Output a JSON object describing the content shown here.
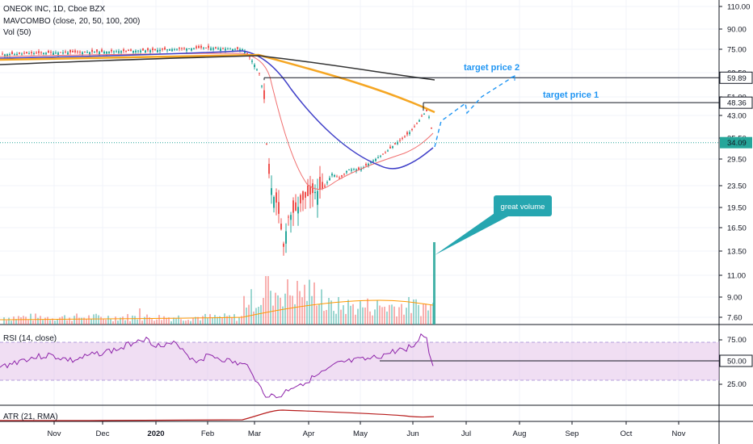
{
  "header": {
    "title": "ONEOK INC, 1D, Cboe BZX",
    "indicator_ma": "MAVCOMBO (close, 20, 50, 100, 200)",
    "indicator_vol": "Vol (50)"
  },
  "panes": {
    "rsi_label": "RSI (14, close)",
    "atr_label": "ATR (21, RMA)"
  },
  "annotations": {
    "target_price_1": "target price 1",
    "target_price_2": "target price 2",
    "great_volume": "great volume"
  },
  "price_axis": {
    "ticks": [
      "110.00",
      "90.00",
      "75.00",
      "62.50",
      "51.00",
      "43.00",
      "35.50",
      "29.50",
      "23.50",
      "19.50",
      "16.50",
      "13.50",
      "11.00",
      "9.00",
      "7.60"
    ],
    "badges": [
      {
        "value": "59.89",
        "style": "outline"
      },
      {
        "value": "48.36",
        "style": "outline"
      },
      {
        "value": "34.09",
        "style": "filled"
      }
    ]
  },
  "rsi_axis": {
    "ticks": [
      "75.00",
      "25.00"
    ],
    "badge": "50.00"
  },
  "time_axis": {
    "labels": [
      "Nov",
      "Dec",
      "2020",
      "Feb",
      "Mar",
      "Apr",
      "May",
      "Jun",
      "Jul",
      "Aug",
      "Sep",
      "Oct",
      "Nov"
    ]
  },
  "colors": {
    "up": "#26a69a",
    "down": "#ef5350",
    "ma20": "#f06f6f",
    "ma50": "#3f3fc8",
    "ma100": "#f5a623",
    "ma200": "#333333",
    "rsi": "#8e24aa",
    "atr": "#b71c1c",
    "callout": "#26a6b0",
    "last_price": "#26a69a"
  },
  "chart_data": {
    "type": "candlestick",
    "symbol": "ONEOK INC, 1D, Cboe BZX",
    "price_scale": "log",
    "y_ticks": [
      110,
      90,
      75,
      62.5,
      51,
      43,
      35.5,
      29.5,
      23.5,
      19.5,
      16.5,
      13.5,
      11,
      9,
      7.6
    ],
    "x_labels": [
      "Nov",
      "Dec",
      "2020",
      "Feb",
      "Mar",
      "Apr",
      "May",
      "Jun",
      "Jul",
      "Aug",
      "Sep",
      "Oct",
      "Nov"
    ],
    "last_price": 34.09,
    "levels": [
      {
        "label": "target price 2",
        "value": 59.89
      },
      {
        "label": "target price 1",
        "value": 48.36
      }
    ],
    "price_path": [
      {
        "x": "Oct",
        "close": 72
      },
      {
        "x": "Nov",
        "close": 73
      },
      {
        "x": "Dec",
        "close": 73.5
      },
      {
        "x": "2020",
        "close": 74.5
      },
      {
        "x": "Feb",
        "close": 76
      },
      {
        "x": "Mar",
        "close": 64
      },
      {
        "x": "Mid-Mar",
        "close": 13
      },
      {
        "x": "Apr",
        "close": 20
      },
      {
        "x": "May",
        "close": 28
      },
      {
        "x": "Jun",
        "close": 43
      },
      {
        "x": "Jun-end",
        "close": 34.09
      }
    ],
    "rsi": {
      "overbought": 70,
      "oversold": 30,
      "level_line": 50
    },
    "callout": "great volume"
  }
}
